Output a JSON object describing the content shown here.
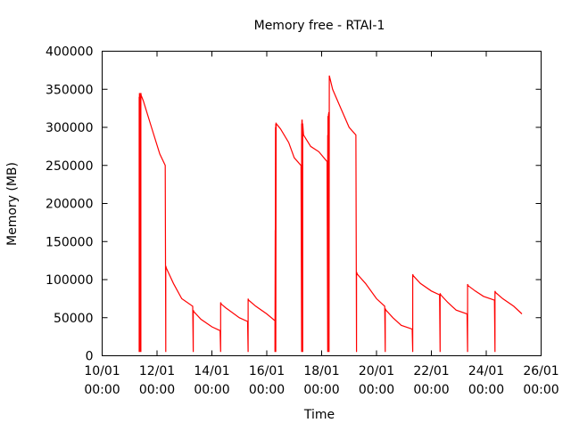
{
  "chart_data": {
    "type": "line",
    "title": "Memory free - RTAI-1",
    "xlabel": "Time",
    "ylabel": "Memory (MB)",
    "xlim": [
      0,
      16
    ],
    "ylim": [
      0,
      400000
    ],
    "grid": false,
    "yticks": [
      0,
      50000,
      100000,
      150000,
      200000,
      250000,
      300000,
      350000,
      400000
    ],
    "xticks": [
      {
        "value": 0,
        "date": "10/01",
        "time": "00:00"
      },
      {
        "value": 2,
        "date": "12/01",
        "time": "00:00"
      },
      {
        "value": 4,
        "date": "14/01",
        "time": "00:00"
      },
      {
        "value": 6,
        "date": "16/01",
        "time": "00:00"
      },
      {
        "value": 8,
        "date": "18/01",
        "time": "00:00"
      },
      {
        "value": 10,
        "date": "20/01",
        "time": "00:00"
      },
      {
        "value": 12,
        "date": "22/01",
        "time": "00:00"
      },
      {
        "value": 14,
        "date": "24/01",
        "time": "00:00"
      },
      {
        "value": 16,
        "date": "26/01",
        "time": "00:00"
      }
    ],
    "series": [
      {
        "name": "",
        "color": "#ff0000",
        "x": [
          1.35,
          1.35,
          1.36,
          1.36,
          1.37,
          1.37,
          1.38,
          1.38,
          1.39,
          1.39,
          1.4,
          1.4,
          1.41,
          1.41,
          1.42,
          1.5,
          1.8,
          2.1,
          2.3,
          2.32,
          2.32,
          2.34,
          2.6,
          2.9,
          3.3,
          3.32,
          3.32,
          3.34,
          3.6,
          4.0,
          4.3,
          4.32,
          4.32,
          4.34,
          4.5,
          5.0,
          5.3,
          5.32,
          5.32,
          5.34,
          5.6,
          6.0,
          6.3,
          6.3,
          6.31,
          6.31,
          6.32,
          6.32,
          6.33,
          6.33,
          6.34,
          6.5,
          6.8,
          7.0,
          7.25,
          7.27,
          7.27,
          7.28,
          7.28,
          7.29,
          7.29,
          7.3,
          7.3,
          7.31,
          7.31,
          7.32,
          7.34,
          7.6,
          7.9,
          8.2,
          8.22,
          8.22,
          8.23,
          8.23,
          8.24,
          8.24,
          8.25,
          8.25,
          8.26,
          8.26,
          8.27,
          8.28,
          8.3,
          8.4,
          8.7,
          9.0,
          9.25,
          9.27,
          9.27,
          9.3,
          9.6,
          10.0,
          10.3,
          10.32,
          10.32,
          10.34,
          10.6,
          10.9,
          11.3,
          11.32,
          11.32,
          11.34,
          11.6,
          12.0,
          12.3,
          12.32,
          12.32,
          12.34,
          12.6,
          12.9,
          13.3,
          13.32,
          13.32,
          13.34,
          13.6,
          13.9,
          14.3,
          14.32,
          14.32,
          14.34,
          14.6,
          15.0,
          15.3
        ],
        "y": [
          5000,
          340000,
          5000,
          345000,
          5000,
          345000,
          5000,
          345000,
          5000,
          345000,
          5000,
          345000,
          5000,
          345000,
          342000,
          335000,
          300000,
          265000,
          250000,
          5000,
          118000,
          115000,
          95000,
          75000,
          65000,
          5000,
          60000,
          58000,
          48000,
          38000,
          33000,
          5000,
          70000,
          68000,
          63000,
          50000,
          45000,
          5000,
          75000,
          73000,
          65000,
          55000,
          46000,
          5000,
          165000,
          5000,
          300000,
          5000,
          305000,
          5000,
          305000,
          298000,
          280000,
          260000,
          250000,
          5000,
          305000,
          5000,
          310000,
          5000,
          310000,
          5000,
          305000,
          5000,
          305000,
          300000,
          290000,
          275000,
          268000,
          255000,
          5000,
          290000,
          5000,
          315000,
          5000,
          300000,
          5000,
          318000,
          5000,
          320000,
          5000,
          368000,
          365000,
          350000,
          325000,
          300000,
          290000,
          5000,
          110000,
          107000,
          95000,
          75000,
          65000,
          5000,
          62000,
          60000,
          50000,
          40000,
          35000,
          5000,
          107000,
          105000,
          95000,
          85000,
          80000,
          5000,
          82000,
          80000,
          70000,
          60000,
          55000,
          5000,
          94000,
          92000,
          85000,
          78000,
          73000,
          5000,
          85000,
          83000,
          75000,
          65000,
          55000
        ]
      }
    ]
  }
}
